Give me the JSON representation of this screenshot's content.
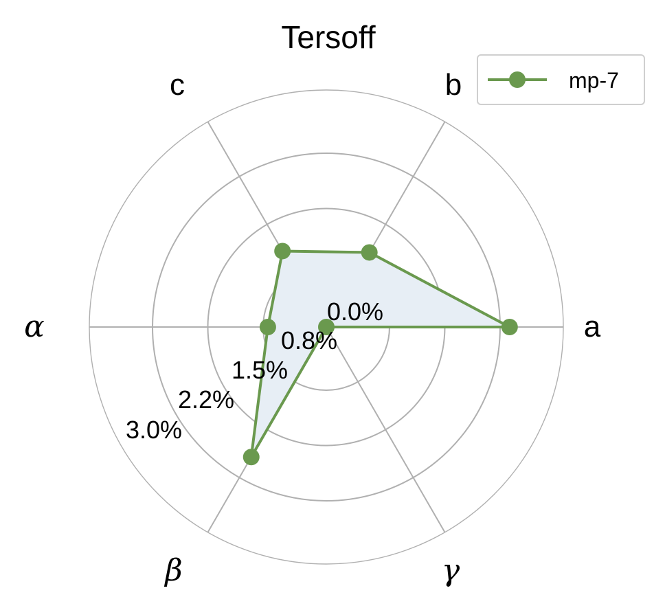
{
  "chart_data": {
    "type": "radar",
    "title": "Tersoff",
    "axes": [
      "a",
      "b",
      "c",
      "α",
      "β",
      "γ"
    ],
    "radial_ticks": [
      0.0,
      0.8,
      1.5,
      2.2,
      3.0
    ],
    "radial_tick_labels": [
      "0.0%",
      "0.8%",
      "1.5%",
      "2.2%",
      "3.0%"
    ],
    "rlim": [
      0.0,
      3.0
    ],
    "series": [
      {
        "name": "mp-7",
        "values": [
          2.32,
          1.09,
          1.11,
          0.74,
          1.9,
          0.0
        ]
      }
    ],
    "legend_position": "top-right",
    "grid": true
  },
  "colors": {
    "series_line": "#6a994e",
    "series_fill": "#e7eef5",
    "grid": "#b0b0b0",
    "text": "#000000"
  }
}
